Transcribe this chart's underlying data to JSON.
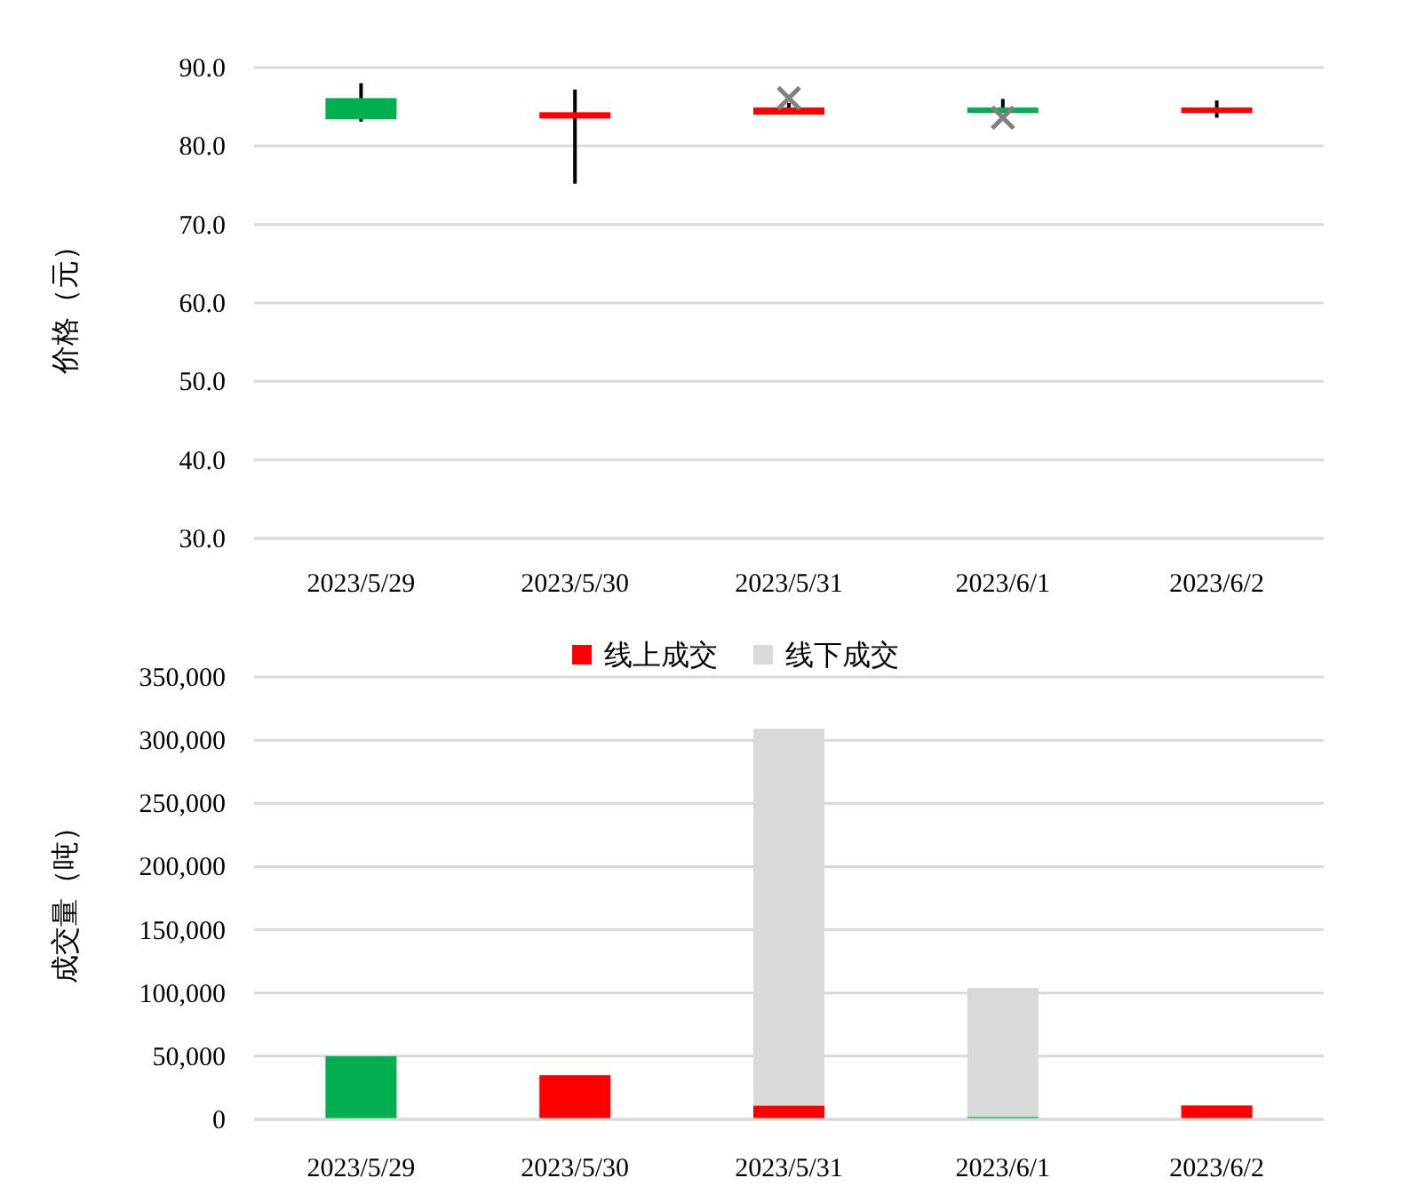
{
  "chart_data": [
    {
      "type": "candlestick",
      "ylabel": "价格（元）",
      "categories": [
        "2023/5/29",
        "2023/5/30",
        "2023/5/31",
        "2023/6/1",
        "2023/6/2"
      ],
      "ohlc": [
        [
          86.1,
          88.0,
          83.1,
          83.4
        ],
        [
          83.5,
          87.2,
          75.2,
          84.3
        ],
        [
          84.0,
          85.5,
          84.0,
          84.9
        ],
        [
          84.9,
          86.0,
          84.2,
          84.2
        ],
        [
          84.2,
          85.8,
          83.6,
          84.9
        ]
      ],
      "colors": [
        "#00b050",
        "#ff0000",
        "#ff0000",
        "#00b050",
        "#ff0000"
      ],
      "series": [
        {
          "type": "scatter",
          "marker": "cross",
          "color": "#808080",
          "values": [
            null,
            null,
            86.1,
            83.6,
            null
          ]
        }
      ],
      "ylim": [
        30,
        90
      ],
      "yticks": [
        {
          "value": 30,
          "label": "30.0"
        },
        {
          "value": 40,
          "label": "40.0"
        },
        {
          "value": 50,
          "label": "50.0"
        },
        {
          "value": 60,
          "label": "60.0"
        },
        {
          "value": 70,
          "label": "70.0"
        },
        {
          "value": 80,
          "label": "80.0"
        },
        {
          "value": 90,
          "label": "90.0"
        }
      ],
      "grid": "y"
    },
    {
      "type": "bar",
      "stacked": true,
      "ylabel": "成交量（吨）",
      "legend": "top",
      "categories": [
        "2023/5/29",
        "2023/5/30",
        "2023/5/31",
        "2023/6/1",
        "2023/6/2"
      ],
      "series": [
        {
          "name": "线上成交",
          "color": "#ff0000",
          "colors": [
            "#00b050",
            "#ff0000",
            "#ff0000",
            "#00b050",
            "#ff0000"
          ],
          "values": [
            50000,
            35000,
            11000,
            2000,
            11000
          ]
        },
        {
          "name": "线下成交",
          "color": "#d9d9d9",
          "values": [
            0,
            0,
            298000,
            102000,
            0
          ]
        }
      ],
      "ylim": [
        0,
        350000
      ],
      "yticks": [
        {
          "value": 0,
          "label": "0"
        },
        {
          "value": 50000,
          "label": "50,000"
        },
        {
          "value": 100000,
          "label": "100,000"
        },
        {
          "value": 150000,
          "label": "150,000"
        },
        {
          "value": 200000,
          "label": "200,000"
        },
        {
          "value": 250000,
          "label": "250,000"
        },
        {
          "value": 300000,
          "label": "300,000"
        },
        {
          "value": 350000,
          "label": "350,000"
        }
      ],
      "grid": "y"
    }
  ]
}
